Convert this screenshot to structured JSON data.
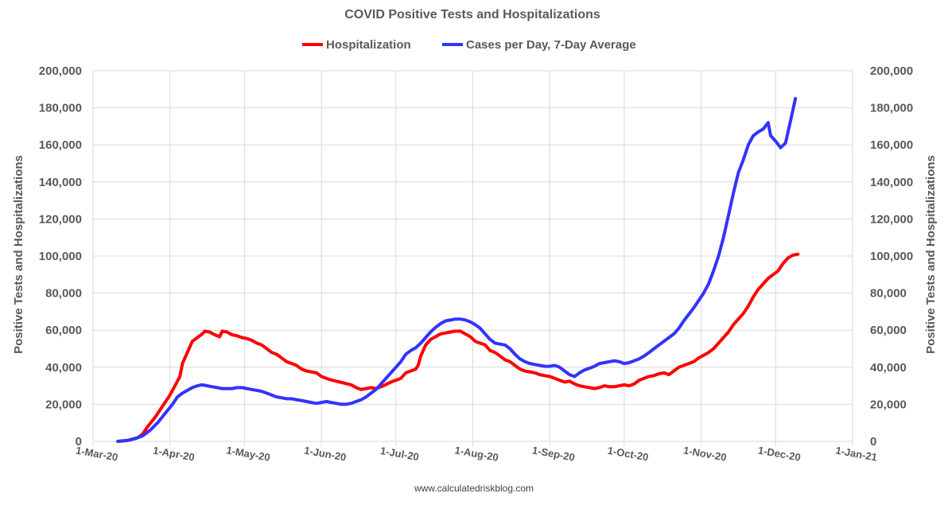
{
  "chart_data": {
    "type": "line",
    "title": "COVID Positive Tests and Hospitalizations",
    "ylabel": "Positive Tests and Hospitalizations",
    "ylabel_right": "Positive Tests and Hospitalizations",
    "source": "www.calculatedriskblog.com",
    "ylim": [
      0,
      200000
    ],
    "yticks": [
      0,
      20000,
      40000,
      60000,
      80000,
      100000,
      120000,
      140000,
      160000,
      180000,
      200000
    ],
    "ytick_labels": [
      "0",
      "20,000",
      "40,000",
      "60,000",
      "80,000",
      "100,000",
      "120,000",
      "140,000",
      "160,000",
      "180,000",
      "200,000"
    ],
    "xlim_day": [
      0,
      306
    ],
    "xticks": [
      {
        "day": 0,
        "label": "1-Mar-20"
      },
      {
        "day": 31,
        "label": "1-Apr-20"
      },
      {
        "day": 61,
        "label": "1-May-20"
      },
      {
        "day": 92,
        "label": "1-Jun-20"
      },
      {
        "day": 122,
        "label": "1-Jul-20"
      },
      {
        "day": 153,
        "label": "1-Aug-20"
      },
      {
        "day": 184,
        "label": "1-Sep-20"
      },
      {
        "day": 214,
        "label": "1-Oct-20"
      },
      {
        "day": 245,
        "label": "1-Nov-20"
      },
      {
        "day": 275,
        "label": "1-Dec-20"
      },
      {
        "day": 306,
        "label": "1-Jan-21"
      }
    ],
    "legend_position": "top",
    "series": [
      {
        "name": "Hospitalization",
        "color": "#ff0000",
        "points": [
          [
            10,
            0
          ],
          [
            14,
            500
          ],
          [
            18,
            2000
          ],
          [
            20,
            4000
          ],
          [
            22,
            8000
          ],
          [
            25,
            13000
          ],
          [
            28,
            19000
          ],
          [
            31,
            25000
          ],
          [
            33,
            30000
          ],
          [
            35,
            35000
          ],
          [
            36,
            42000
          ],
          [
            38,
            48000
          ],
          [
            40,
            54000
          ],
          [
            42,
            56000
          ],
          [
            44,
            58000
          ],
          [
            45,
            59500
          ],
          [
            47,
            59000
          ],
          [
            49,
            57500
          ],
          [
            51,
            56500
          ],
          [
            52,
            59500
          ],
          [
            54,
            59000
          ],
          [
            56,
            57500
          ],
          [
            58,
            57000
          ],
          [
            60,
            56000
          ],
          [
            62,
            55500
          ],
          [
            64,
            54500
          ],
          [
            66,
            53000
          ],
          [
            68,
            52000
          ],
          [
            70,
            50000
          ],
          [
            72,
            48000
          ],
          [
            74,
            47000
          ],
          [
            76,
            45000
          ],
          [
            78,
            43000
          ],
          [
            80,
            42000
          ],
          [
            82,
            41000
          ],
          [
            84,
            39000
          ],
          [
            86,
            38000
          ],
          [
            88,
            37500
          ],
          [
            90,
            37000
          ],
          [
            92,
            35000
          ],
          [
            95,
            33500
          ],
          [
            98,
            32500
          ],
          [
            101,
            31500
          ],
          [
            104,
            30500
          ],
          [
            106,
            29000
          ],
          [
            108,
            28000
          ],
          [
            110,
            28500
          ],
          [
            112,
            29000
          ],
          [
            114,
            28500
          ],
          [
            117,
            30000
          ],
          [
            120,
            32000
          ],
          [
            122,
            33000
          ],
          [
            124,
            34000
          ],
          [
            126,
            37000
          ],
          [
            128,
            38000
          ],
          [
            130,
            39000
          ],
          [
            131,
            41000
          ],
          [
            132,
            46000
          ],
          [
            134,
            52000
          ],
          [
            136,
            55000
          ],
          [
            138,
            56500
          ],
          [
            140,
            58000
          ],
          [
            142,
            58500
          ],
          [
            144,
            59000
          ],
          [
            146,
            59500
          ],
          [
            148,
            59500
          ],
          [
            150,
            58000
          ],
          [
            152,
            56500
          ],
          [
            154,
            54000
          ],
          [
            156,
            53000
          ],
          [
            158,
            52000
          ],
          [
            160,
            49000
          ],
          [
            162,
            48000
          ],
          [
            164,
            46000
          ],
          [
            166,
            44000
          ],
          [
            168,
            43000
          ],
          [
            170,
            41000
          ],
          [
            172,
            39000
          ],
          [
            174,
            38000
          ],
          [
            176,
            37500
          ],
          [
            178,
            37000
          ],
          [
            180,
            36000
          ],
          [
            182,
            35500
          ],
          [
            184,
            35000
          ],
          [
            186,
            34000
          ],
          [
            188,
            33000
          ],
          [
            190,
            32000
          ],
          [
            192,
            32500
          ],
          [
            194,
            31000
          ],
          [
            196,
            30000
          ],
          [
            198,
            29500
          ],
          [
            200,
            29000
          ],
          [
            202,
            28500
          ],
          [
            204,
            29000
          ],
          [
            206,
            30000
          ],
          [
            208,
            29500
          ],
          [
            210,
            29500
          ],
          [
            212,
            30000
          ],
          [
            214,
            30500
          ],
          [
            216,
            30000
          ],
          [
            218,
            31000
          ],
          [
            220,
            33000
          ],
          [
            222,
            34000
          ],
          [
            224,
            35000
          ],
          [
            226,
            35500
          ],
          [
            228,
            36500
          ],
          [
            230,
            37000
          ],
          [
            232,
            36000
          ],
          [
            234,
            38000
          ],
          [
            236,
            40000
          ],
          [
            238,
            41000
          ],
          [
            240,
            42000
          ],
          [
            242,
            43000
          ],
          [
            244,
            45000
          ],
          [
            246,
            46500
          ],
          [
            248,
            48000
          ],
          [
            250,
            50000
          ],
          [
            252,
            53000
          ],
          [
            254,
            56000
          ],
          [
            256,
            59000
          ],
          [
            258,
            63000
          ],
          [
            260,
            66000
          ],
          [
            262,
            69000
          ],
          [
            264,
            73000
          ],
          [
            266,
            78000
          ],
          [
            268,
            82000
          ],
          [
            270,
            85000
          ],
          [
            272,
            88000
          ],
          [
            274,
            90000
          ],
          [
            276,
            92000
          ],
          [
            278,
            96000
          ],
          [
            280,
            99000
          ],
          [
            282,
            100500
          ],
          [
            284,
            101000
          ]
        ]
      },
      {
        "name": "Cases per Day, 7-Day Average",
        "color": "#3333ff",
        "points": [
          [
            10,
            0
          ],
          [
            14,
            500
          ],
          [
            17,
            1500
          ],
          [
            20,
            3000
          ],
          [
            23,
            6000
          ],
          [
            26,
            10000
          ],
          [
            29,
            15000
          ],
          [
            32,
            20000
          ],
          [
            34,
            24000
          ],
          [
            36,
            26000
          ],
          [
            38,
            27500
          ],
          [
            40,
            29000
          ],
          [
            42,
            30000
          ],
          [
            44,
            30500
          ],
          [
            46,
            30000
          ],
          [
            48,
            29500
          ],
          [
            50,
            29000
          ],
          [
            52,
            28500
          ],
          [
            54,
            28500
          ],
          [
            56,
            28500
          ],
          [
            58,
            29000
          ],
          [
            60,
            29000
          ],
          [
            62,
            28500
          ],
          [
            64,
            28000
          ],
          [
            66,
            27500
          ],
          [
            68,
            27000
          ],
          [
            70,
            26000
          ],
          [
            72,
            25000
          ],
          [
            74,
            24000
          ],
          [
            76,
            23500
          ],
          [
            78,
            23000
          ],
          [
            80,
            23000
          ],
          [
            82,
            22500
          ],
          [
            84,
            22000
          ],
          [
            86,
            21500
          ],
          [
            88,
            21000
          ],
          [
            90,
            20500
          ],
          [
            92,
            21000
          ],
          [
            94,
            21500
          ],
          [
            96,
            21000
          ],
          [
            98,
            20500
          ],
          [
            100,
            20000
          ],
          [
            102,
            20000
          ],
          [
            104,
            20500
          ],
          [
            106,
            21500
          ],
          [
            108,
            22500
          ],
          [
            110,
            24000
          ],
          [
            112,
            26000
          ],
          [
            114,
            28000
          ],
          [
            116,
            31000
          ],
          [
            118,
            34000
          ],
          [
            120,
            37000
          ],
          [
            122,
            40000
          ],
          [
            124,
            43000
          ],
          [
            126,
            47000
          ],
          [
            128,
            49000
          ],
          [
            130,
            50500
          ],
          [
            132,
            53000
          ],
          [
            134,
            56000
          ],
          [
            136,
            59000
          ],
          [
            138,
            61500
          ],
          [
            140,
            63500
          ],
          [
            142,
            65000
          ],
          [
            144,
            65500
          ],
          [
            146,
            66000
          ],
          [
            148,
            66000
          ],
          [
            150,
            65500
          ],
          [
            152,
            64500
          ],
          [
            154,
            63000
          ],
          [
            156,
            61000
          ],
          [
            158,
            58000
          ],
          [
            160,
            55000
          ],
          [
            162,
            53000
          ],
          [
            164,
            52500
          ],
          [
            166,
            52000
          ],
          [
            168,
            50000
          ],
          [
            170,
            47000
          ],
          [
            172,
            44500
          ],
          [
            174,
            43000
          ],
          [
            176,
            42000
          ],
          [
            178,
            41500
          ],
          [
            180,
            41000
          ],
          [
            182,
            40500
          ],
          [
            184,
            40500
          ],
          [
            186,
            41000
          ],
          [
            188,
            40000
          ],
          [
            190,
            38000
          ],
          [
            192,
            36000
          ],
          [
            194,
            35000
          ],
          [
            196,
            37000
          ],
          [
            198,
            38500
          ],
          [
            200,
            39500
          ],
          [
            202,
            40500
          ],
          [
            204,
            42000
          ],
          [
            206,
            42500
          ],
          [
            208,
            43000
          ],
          [
            210,
            43500
          ],
          [
            212,
            43000
          ],
          [
            214,
            42000
          ],
          [
            216,
            42500
          ],
          [
            218,
            43500
          ],
          [
            220,
            44500
          ],
          [
            222,
            46000
          ],
          [
            224,
            48000
          ],
          [
            226,
            50000
          ],
          [
            228,
            52000
          ],
          [
            230,
            54000
          ],
          [
            232,
            56000
          ],
          [
            234,
            58000
          ],
          [
            236,
            61000
          ],
          [
            238,
            65000
          ],
          [
            240,
            68500
          ],
          [
            242,
            72000
          ],
          [
            244,
            76000
          ],
          [
            246,
            80000
          ],
          [
            248,
            85000
          ],
          [
            250,
            92000
          ],
          [
            252,
            100000
          ],
          [
            254,
            110000
          ],
          [
            256,
            122000
          ],
          [
            258,
            134000
          ],
          [
            260,
            145000
          ],
          [
            262,
            152000
          ],
          [
            264,
            160000
          ],
          [
            266,
            165000
          ],
          [
            268,
            167000
          ],
          [
            270,
            168500
          ],
          [
            272,
            172000
          ],
          [
            273,
            165000
          ],
          [
            275,
            162000
          ],
          [
            277,
            158500
          ],
          [
            279,
            161000
          ],
          [
            281,
            173000
          ],
          [
            283,
            185000
          ]
        ]
      }
    ]
  }
}
